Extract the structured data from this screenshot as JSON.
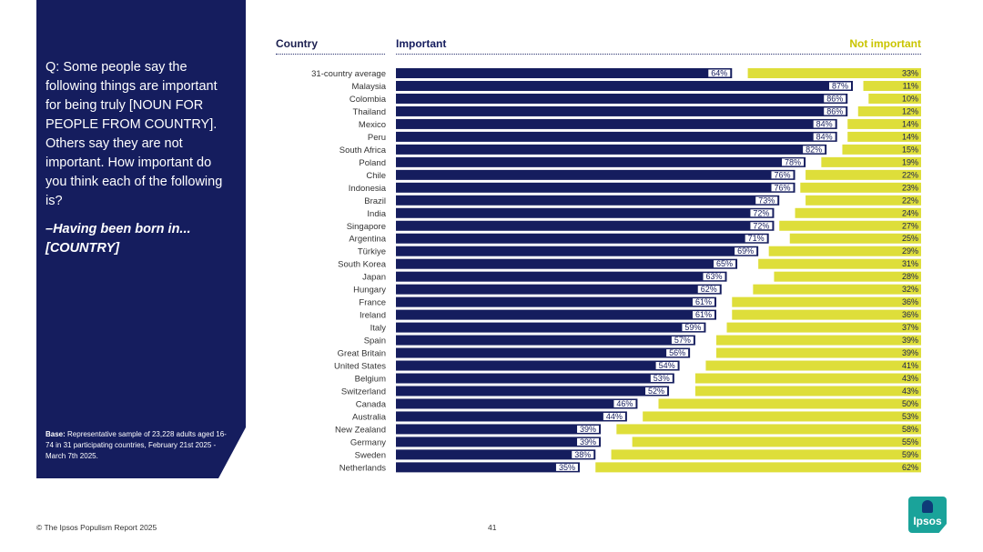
{
  "panel": {
    "question": "Q: Some people say the following things are important for being truly [NOUN FOR PEOPLE FROM COUNTRY]. Others say they are not important. How important do you think each of the following is?",
    "subquestion": "–Having been born in... [COUNTRY]",
    "base_label": "Base:",
    "base_text": " Representative sample of 23,228 adults aged 16-74 in 31 participating countries, February 21st 2025 - March 7th 2025."
  },
  "headers": {
    "country": "Country",
    "important": "Important",
    "not_important": "Not important"
  },
  "footer": {
    "copyright": "© The Ipsos Populism Report 2025",
    "page": "41",
    "logo": "Ipsos"
  },
  "colors": {
    "important": "#151d5e",
    "not_important": "#dede3a",
    "panel": "#151d5e",
    "logo": "#1aa39a"
  },
  "chart_data": {
    "type": "bar",
    "orientation": "horizontal-diverging",
    "categories": [
      "31-country average",
      "Malaysia",
      "Colombia",
      "Thailand",
      "Mexico",
      "Peru",
      "South Africa",
      "Poland",
      "Chile",
      "Indonesia",
      "Brazil",
      "India",
      "Singapore",
      "Argentina",
      "Türkiye",
      "South Korea",
      "Japan",
      "Hungary",
      "France",
      "Ireland",
      "Italy",
      "Spain",
      "Great Britain",
      "United States",
      "Belgium",
      "Switzerland",
      "Canada",
      "Australia",
      "New Zealand",
      "Germany",
      "Sweden",
      "Netherlands"
    ],
    "series": [
      {
        "name": "Important",
        "values": [
          64,
          87,
          86,
          86,
          84,
          84,
          82,
          78,
          76,
          76,
          73,
          72,
          72,
          71,
          69,
          65,
          63,
          62,
          61,
          61,
          59,
          57,
          56,
          54,
          53,
          52,
          46,
          44,
          39,
          39,
          38,
          35
        ]
      },
      {
        "name": "Not important",
        "values": [
          33,
          11,
          10,
          12,
          14,
          14,
          15,
          19,
          22,
          23,
          22,
          24,
          27,
          25,
          29,
          31,
          28,
          32,
          36,
          36,
          37,
          39,
          39,
          41,
          43,
          43,
          50,
          53,
          58,
          55,
          59,
          62
        ]
      }
    ],
    "xlim": [
      0,
      100
    ],
    "value_format": "percent"
  }
}
